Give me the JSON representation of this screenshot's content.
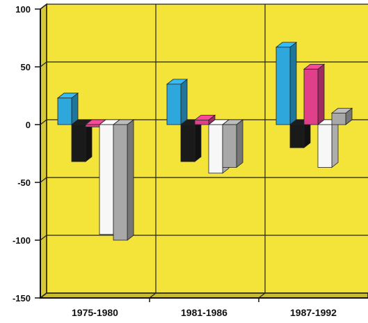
{
  "chart_data": {
    "type": "bar",
    "style": "3d",
    "title": "",
    "xlabel": "",
    "ylabel": "",
    "ylim": [
      -150,
      100
    ],
    "yticks": [
      100,
      50,
      0,
      -50,
      -100,
      -150
    ],
    "grid": true,
    "legend": "none",
    "categories": [
      "1975-1980",
      "1981-1986",
      "1987-1992"
    ],
    "series": [
      {
        "color": "#2ea8dc",
        "values": [
          23,
          35,
          67
        ]
      },
      {
        "color": "#1a1a1a",
        "values": [
          -32,
          -32,
          -20
        ]
      },
      {
        "color": "#e0408a",
        "values": [
          -2,
          4,
          48
        ]
      },
      {
        "color": "#f7f7f7",
        "values": [
          -95,
          -42,
          -37
        ]
      },
      {
        "color": "#a8a8a8",
        "values": [
          -100,
          -37,
          10
        ]
      }
    ]
  },
  "colors": {
    "plot_background": "#f4e43a",
    "grid": "#222222",
    "axis": "#111111"
  }
}
